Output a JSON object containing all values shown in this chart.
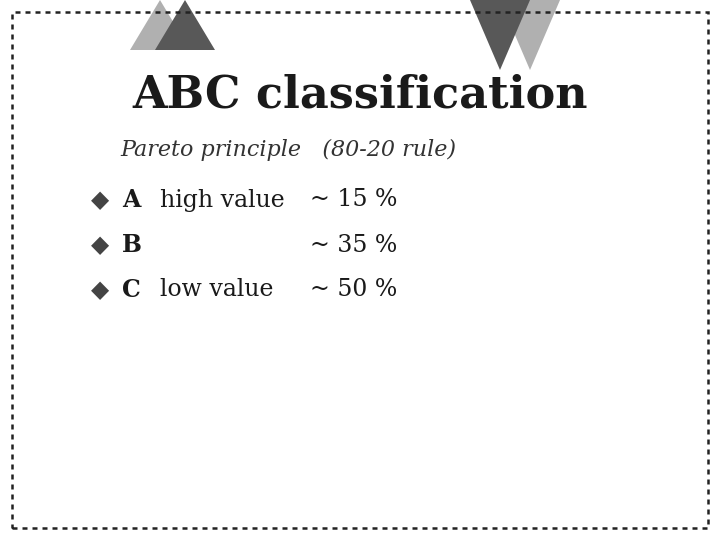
{
  "title": "ABC classification",
  "subtitle": "Pareto principle   (80-20 rule)",
  "bg_color": "#ffffff",
  "border_color": "#222222",
  "title_color": "#1a1a1a",
  "subtitle_color": "#333333",
  "text_color": "#1a1a1a",
  "diamond_color": "#444444",
  "triangle_dark": "#585858",
  "triangle_light": "#b0b0b0",
  "rows": [
    {
      "bullet": "◆",
      "letter": "A",
      "desc": "high value",
      "pct": "~ 15 %"
    },
    {
      "bullet": "◆",
      "letter": "B",
      "desc": "",
      "pct": "~ 35 %"
    },
    {
      "bullet": "◆",
      "letter": "C",
      "desc": "low value",
      "pct": "~ 50 %"
    }
  ],
  "title_fontsize": 32,
  "subtitle_fontsize": 16,
  "row_fontsize": 17,
  "figsize": [
    7.2,
    5.4
  ],
  "dpi": 100
}
